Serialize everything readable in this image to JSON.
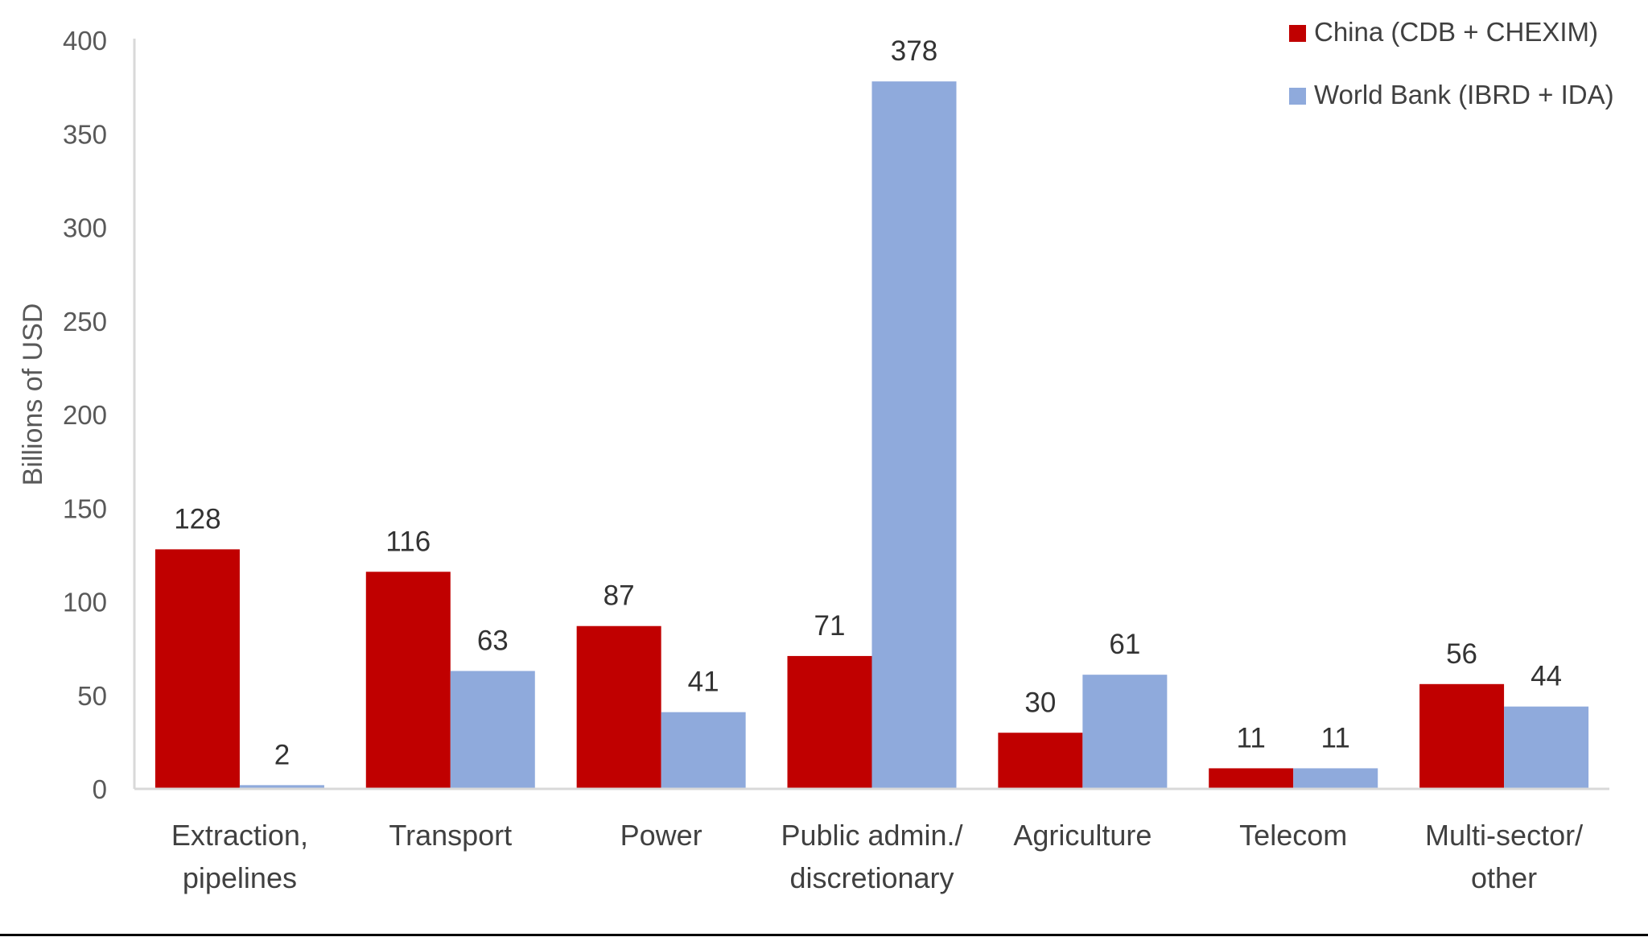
{
  "chart_data": {
    "type": "bar",
    "title": "",
    "xlabel": "",
    "ylabel": "Billions of USD",
    "ylim": [
      0,
      400
    ],
    "yticks": [
      0,
      50,
      100,
      150,
      200,
      250,
      300,
      350,
      400
    ],
    "grid": false,
    "legend_position": "top-right",
    "categories": [
      [
        "Extraction,",
        "pipelines"
      ],
      [
        "Transport"
      ],
      [
        "Power"
      ],
      [
        "Public admin./",
        "discretionary"
      ],
      [
        "Agriculture"
      ],
      [
        "Telecom"
      ],
      [
        "Multi-sector/",
        "other"
      ]
    ],
    "series": [
      {
        "name": "China (CDB + CHEXIM)",
        "color": "#C00000",
        "values": [
          128,
          116,
          87,
          71,
          30,
          11,
          56
        ]
      },
      {
        "name": "World Bank (IBRD + IDA)",
        "color": "#8FAADC",
        "values": [
          2,
          63,
          41,
          378,
          61,
          11,
          44
        ]
      }
    ]
  },
  "colors": {
    "axis": "#D9D9D9",
    "text": "#404040",
    "label": "#333333"
  }
}
